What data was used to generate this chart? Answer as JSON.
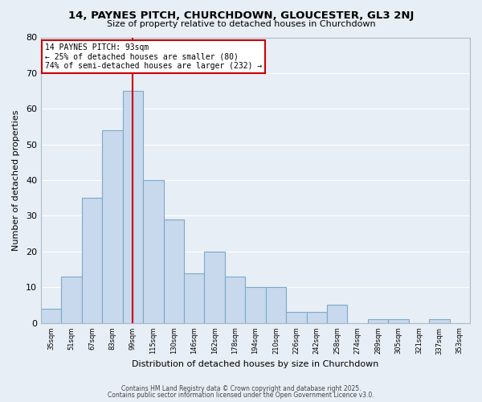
{
  "title": "14, PAYNES PITCH, CHURCHDOWN, GLOUCESTER, GL3 2NJ",
  "subtitle": "Size of property relative to detached houses in Churchdown",
  "xlabel": "Distribution of detached houses by size in Churchdown",
  "ylabel": "Number of detached properties",
  "bar_color": "#c8d8ed",
  "bar_edge_color": "#7aaac8",
  "background_color": "#e8eef5",
  "grid_color": "#ffffff",
  "bin_labels": [
    "35sqm",
    "51sqm",
    "67sqm",
    "83sqm",
    "99sqm",
    "115sqm",
    "130sqm",
    "146sqm",
    "162sqm",
    "178sqm",
    "194sqm",
    "210sqm",
    "226sqm",
    "242sqm",
    "258sqm",
    "274sqm",
    "289sqm",
    "305sqm",
    "321sqm",
    "337sqm",
    "353sqm"
  ],
  "values": [
    4,
    13,
    35,
    54,
    65,
    40,
    29,
    14,
    20,
    13,
    10,
    10,
    3,
    3,
    5,
    0,
    1,
    1,
    0,
    1,
    0
  ],
  "ylim": [
    0,
    80
  ],
  "yticks": [
    0,
    10,
    20,
    30,
    40,
    50,
    60,
    70,
    80
  ],
  "vline_x": 4.5,
  "annotation_title": "14 PAYNES PITCH: 93sqm",
  "annotation_line2": "← 25% of detached houses are smaller (80)",
  "annotation_line3": "74% of semi-detached houses are larger (232) →",
  "annotation_box_color": "#ffffff",
  "annotation_box_edge_color": "#cc0000",
  "vline_color": "#cc0000",
  "footer_line1": "Contains HM Land Registry data © Crown copyright and database right 2025.",
  "footer_line2": "Contains public sector information licensed under the Open Government Licence v3.0."
}
